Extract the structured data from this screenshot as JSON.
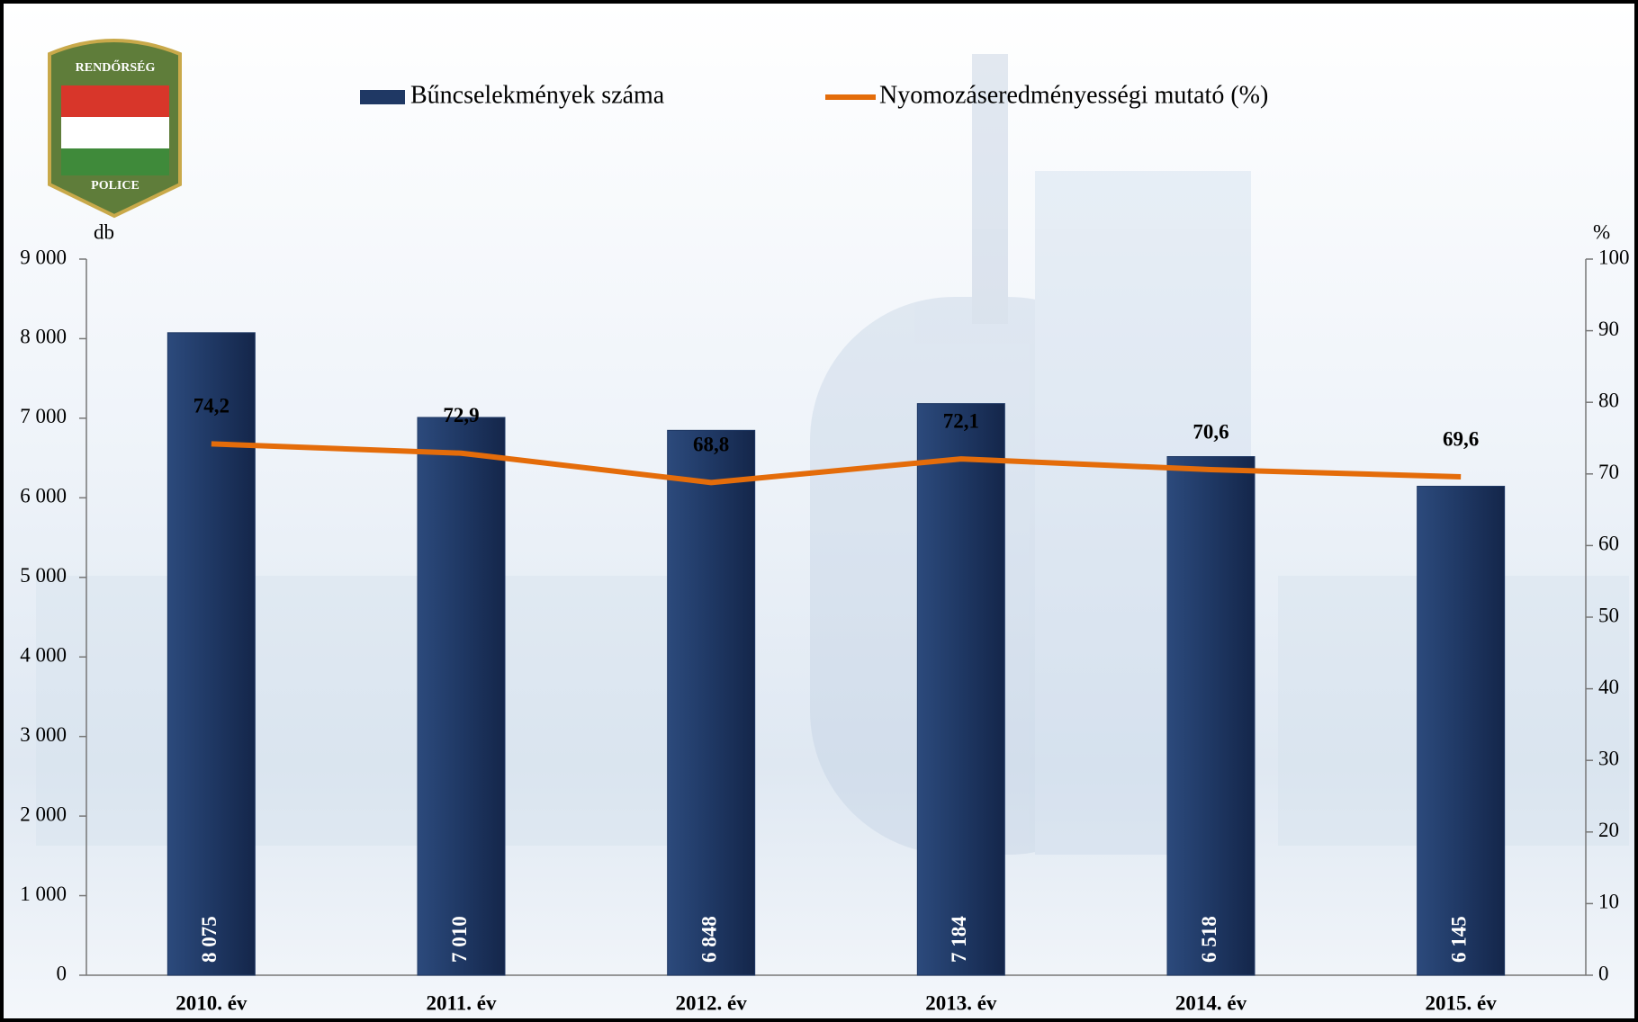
{
  "logo": {
    "top": "RENDŐRSÉG",
    "bottom": "POLICE"
  },
  "chart_data": {
    "type": "bar",
    "categories": [
      "2010. év",
      "2011. év",
      "2012. év",
      "2013. év",
      "2014. év",
      "2015. év"
    ],
    "series": [
      {
        "name": "Bűncselekmények száma",
        "type": "bar",
        "color": "#1f3864",
        "values": [
          8075,
          7010,
          6848,
          7184,
          6518,
          6145
        ],
        "value_labels": [
          "8 075",
          "7 010",
          "6 848",
          "7 184",
          "6 518",
          "6 145"
        ]
      },
      {
        "name": "Nyomozáseredményességi mutató (%)",
        "type": "line",
        "color": "#e46c0a",
        "axis": "y2",
        "values": [
          74.2,
          72.9,
          68.8,
          72.1,
          70.6,
          69.6
        ],
        "value_labels": [
          "74,2",
          "72,9",
          "68,8",
          "72,1",
          "70,6",
          "69,6"
        ]
      }
    ],
    "ylabel": "db",
    "y2label": "%",
    "ylim": [
      0,
      9000
    ],
    "yticks": [
      0,
      {
        "value": 1000,
        "label": "1 000"
      },
      {
        "value": 2000,
        "label": "2 000"
      },
      {
        "value": 3000,
        "label": "3 000"
      },
      {
        "value": 4000,
        "label": "4 000"
      },
      {
        "value": 5000,
        "label": "5 000"
      },
      {
        "value": 6000,
        "label": "6 000"
      },
      {
        "value": 7000,
        "label": "7 000"
      },
      {
        "value": 8000,
        "label": "8 000"
      },
      {
        "value": 9000,
        "label": "9 000"
      }
    ],
    "y2lim": [
      0,
      100
    ],
    "y2ticks": [
      0,
      10,
      20,
      30,
      40,
      50,
      60,
      70,
      80,
      90,
      100
    ],
    "grid": false,
    "legend": "top"
  }
}
